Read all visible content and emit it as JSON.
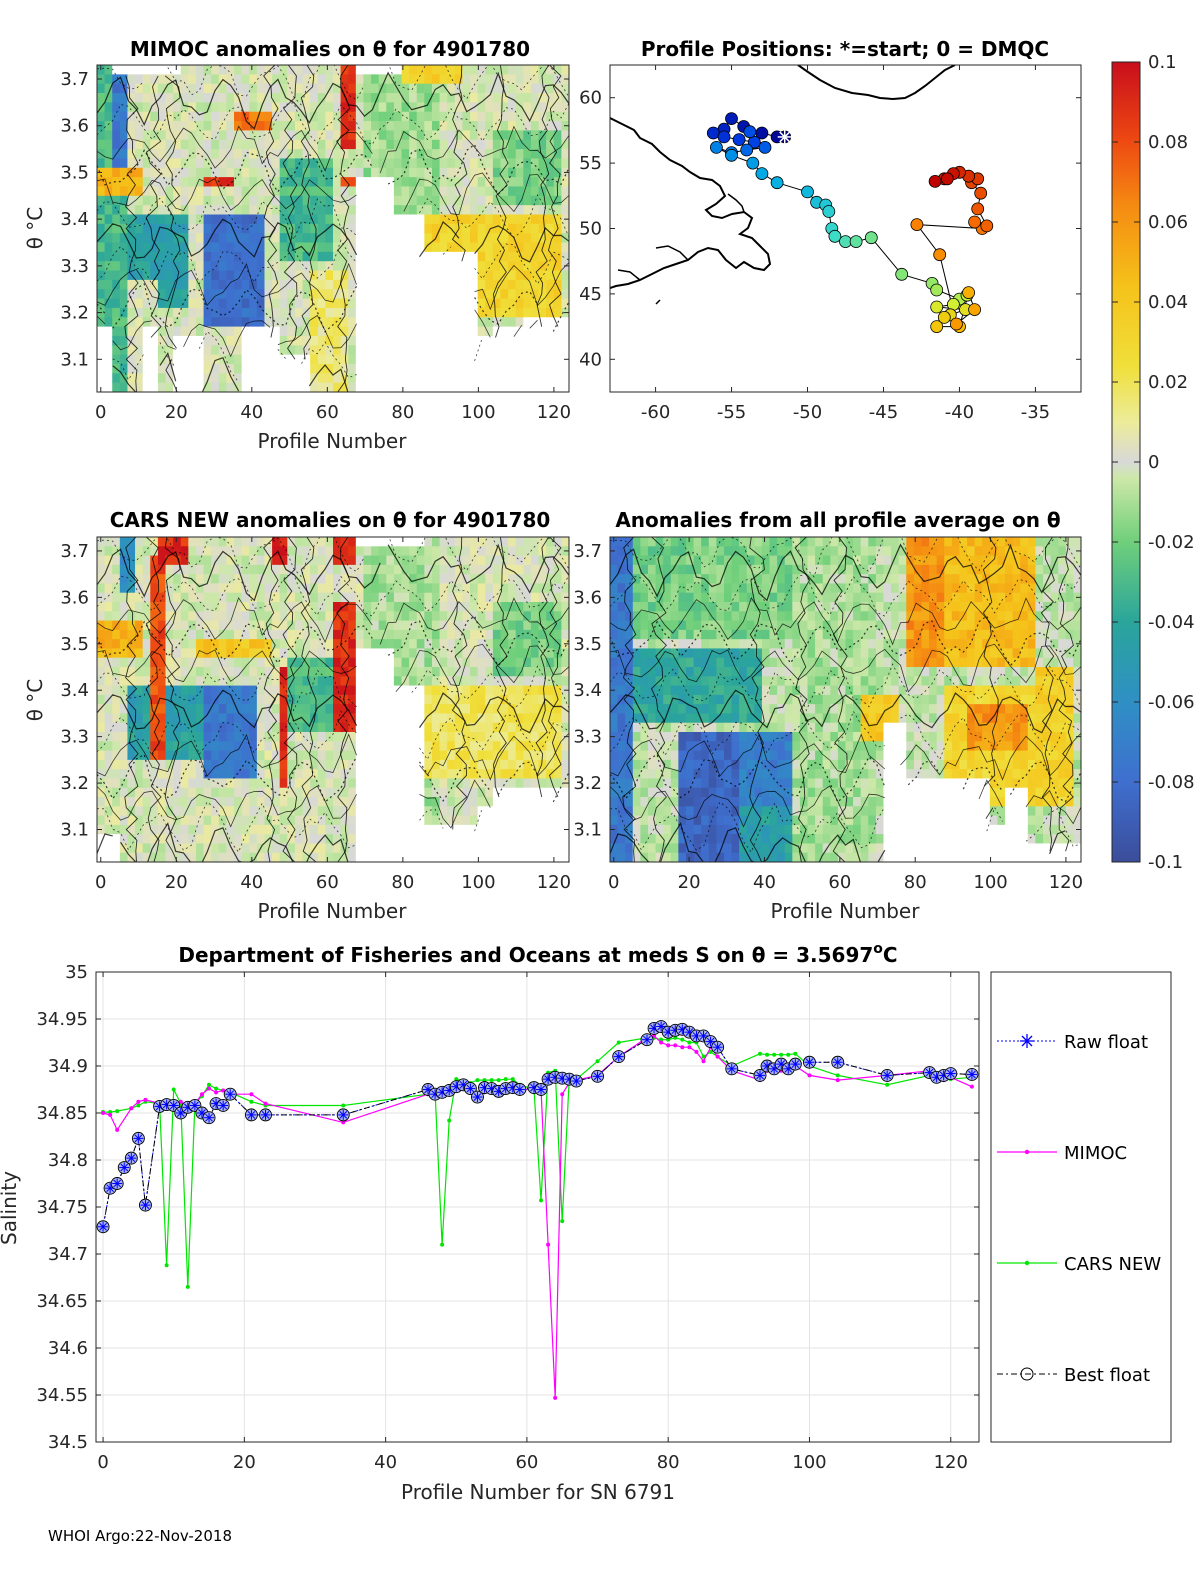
{
  "colors": {
    "raw_float": "#0000ff",
    "mimoc": "#ff00ff",
    "cars_new": "#00e600",
    "best_float": "#000000",
    "missing": "#ffffff",
    "neutral": "#d6d6d6"
  },
  "chart_data": [
    {
      "id": "mimoc",
      "type": "heatmap",
      "title": "MIMOC anomalies on θ  for 4901780",
      "xlabel": "Profile Number",
      "ylabel": "θ °C",
      "xlim": [
        -1,
        124
      ],
      "ylim": [
        3.03,
        3.73
      ],
      "x_ticks": [
        0,
        20,
        40,
        60,
        80,
        100,
        120
      ],
      "x_tick_labels": [
        "0",
        "20",
        "40",
        "60",
        "80",
        "100",
        "120"
      ],
      "y_ticks": [
        3.1,
        3.2,
        3.3,
        3.4,
        3.5,
        3.6,
        3.7
      ],
      "y_tick_labels": [
        "3.1",
        "3.2",
        "3.3",
        "3.4",
        "3.5",
        "3.6",
        "3.7"
      ]
    },
    {
      "id": "positions",
      "type": "scatter",
      "title": "Profile Positions: *=start; 0 = DMQC",
      "xlim": [
        -63,
        -32
      ],
      "ylim": [
        37.5,
        62.5
      ],
      "x_ticks": [
        -60,
        -55,
        -50,
        -45,
        -40,
        -35
      ],
      "x_tick_labels": [
        "-60",
        "-55",
        "-50",
        "-45",
        "-40",
        "-35"
      ],
      "y_ticks": [
        40,
        45,
        50,
        55,
        60
      ],
      "y_tick_labels": [
        "40",
        "45",
        "50",
        "55",
        "60"
      ],
      "track": [
        [
          -51.5,
          57.0
        ],
        [
          -52.0,
          57.0
        ],
        [
          -53.0,
          57.3
        ],
        [
          -54.2,
          57.8
        ],
        [
          -55.0,
          58.4
        ],
        [
          -55.5,
          57.6
        ],
        [
          -56.2,
          57.3
        ],
        [
          -55.5,
          57.0
        ],
        [
          -54.5,
          56.8
        ],
        [
          -53.5,
          56.6
        ],
        [
          -53.8,
          57.4
        ],
        [
          -52.8,
          56.2
        ],
        [
          -54.0,
          56.0
        ],
        [
          -55.0,
          55.8
        ],
        [
          -56.0,
          56.2
        ],
        [
          -55.0,
          55.6
        ],
        [
          -53.6,
          55.0
        ],
        [
          -53.0,
          54.2
        ],
        [
          -52.0,
          53.5
        ],
        [
          -50.0,
          52.8
        ],
        [
          -49.4,
          52.0
        ],
        [
          -48.8,
          51.8
        ],
        [
          -48.6,
          51.3
        ],
        [
          -48.4,
          50.0
        ],
        [
          -48.2,
          49.4
        ],
        [
          -47.5,
          49.0
        ],
        [
          -46.8,
          49.0
        ],
        [
          -45.8,
          49.3
        ],
        [
          -43.8,
          46.5
        ],
        [
          -41.8,
          45.8
        ],
        [
          -41.5,
          45.3
        ],
        [
          -40.0,
          44.6
        ],
        [
          -39.5,
          44.9
        ],
        [
          -40.4,
          44.2
        ],
        [
          -41.5,
          44.0
        ],
        [
          -39.6,
          43.8
        ],
        [
          -40.6,
          43.4
        ],
        [
          -41.0,
          43.2
        ],
        [
          -41.5,
          42.5
        ],
        [
          -40.0,
          42.5
        ],
        [
          -39.4,
          45.1
        ],
        [
          -39.0,
          43.8
        ],
        [
          -40.2,
          42.7
        ],
        [
          -41.3,
          48.0
        ],
        [
          -42.8,
          50.3
        ],
        [
          -38.5,
          50.0
        ],
        [
          -39.0,
          50.5
        ],
        [
          -38.2,
          50.2
        ],
        [
          -38.8,
          51.5
        ],
        [
          -38.6,
          52.7
        ],
        [
          -39.2,
          53.5
        ],
        [
          -38.8,
          53.8
        ],
        [
          -39.4,
          54.0
        ],
        [
          -40.0,
          54.3
        ],
        [
          -41.0,
          53.8
        ],
        [
          -40.4,
          54.2
        ],
        [
          -40.8,
          53.8
        ],
        [
          -41.6,
          53.6
        ]
      ]
    },
    {
      "id": "cars",
      "type": "heatmap",
      "title": "CARS NEW anomalies on θ for 4901780",
      "xlabel": "Profile Number",
      "ylabel": "θ °C",
      "xlim": [
        -1,
        124
      ],
      "ylim": [
        3.03,
        3.73
      ],
      "x_ticks": [
        0,
        20,
        40,
        60,
        80,
        100,
        120
      ],
      "x_tick_labels": [
        "0",
        "20",
        "40",
        "60",
        "80",
        "100",
        "120"
      ],
      "y_ticks": [
        3.1,
        3.2,
        3.3,
        3.4,
        3.5,
        3.6,
        3.7
      ],
      "y_tick_labels": [
        "3.1",
        "3.2",
        "3.3",
        "3.4",
        "3.5",
        "3.6",
        "3.7"
      ]
    },
    {
      "id": "allavg",
      "type": "heatmap",
      "title": "Anomalies from all profile average on θ",
      "xlabel": "Profile Number",
      "xlim": [
        -1,
        124
      ],
      "ylim": [
        3.03,
        3.73
      ],
      "x_ticks": [
        0,
        20,
        40,
        60,
        80,
        100,
        120
      ],
      "x_tick_labels": [
        "0",
        "20",
        "40",
        "60",
        "80",
        "100",
        "120"
      ],
      "y_ticks": [
        3.1,
        3.2,
        3.3,
        3.4,
        3.5,
        3.6,
        3.7
      ],
      "y_tick_labels": [
        "3.1",
        "3.2",
        "3.3",
        "3.4",
        "3.5",
        "3.6",
        "3.7"
      ]
    },
    {
      "id": "colorbar",
      "type": "colorbar",
      "range": [
        -0.1,
        0.1
      ],
      "ticks": [
        0.1,
        0.08,
        0.06,
        0.04,
        0.02,
        0,
        -0.02,
        -0.04,
        -0.06,
        -0.08,
        -0.1
      ],
      "tick_labels": [
        "0.1",
        "0.08",
        "0.06",
        "0.04",
        "0.02",
        "0",
        "-0.02",
        "-0.04",
        "-0.06",
        "-0.08",
        "-0.1"
      ]
    },
    {
      "id": "salinity",
      "type": "line",
      "title": "Department of Fisheries and Oceans at meds S on θ = 3.5697",
      "title_superscript": "o",
      "title_unit": "C",
      "xlabel": "Profile Number for SN 6791",
      "ylabel": "Salinity",
      "xlim": [
        -1,
        124
      ],
      "ylim": [
        34.5,
        35.0
      ],
      "grid": true,
      "x_ticks": [
        0,
        20,
        40,
        60,
        80,
        100,
        120
      ],
      "x_tick_labels": [
        "0",
        "20",
        "40",
        "60",
        "80",
        "100",
        "120"
      ],
      "y_ticks": [
        34.5,
        34.55,
        34.6,
        34.65,
        34.7,
        34.75,
        34.8,
        34.85,
        34.9,
        34.95,
        35.0
      ],
      "y_tick_labels": [
        "34.5",
        "34.55",
        "34.6",
        "34.65",
        "34.7",
        "34.75",
        "34.8",
        "34.85",
        "34.9",
        "34.95",
        "35"
      ],
      "legend": [
        "Raw float",
        "MIMOC",
        "CARS NEW",
        "Best float"
      ],
      "series": [
        {
          "name": "Best float",
          "x": [
            0,
            1,
            2,
            3,
            4,
            5,
            6,
            8,
            9,
            10,
            11,
            12,
            13,
            14,
            15,
            16,
            17,
            18,
            21,
            23,
            34,
            46,
            47,
            48,
            49,
            50,
            51,
            52,
            53,
            54,
            55,
            56,
            57,
            58,
            59,
            61,
            62,
            63,
            64,
            65,
            66,
            67,
            70,
            73,
            77,
            78,
            79,
            80,
            81,
            82,
            83,
            84,
            85,
            86,
            87,
            89,
            93,
            94,
            95,
            96,
            97,
            98,
            100,
            104,
            111,
            117,
            118,
            119,
            120,
            123
          ],
          "y": [
            34.729,
            34.77,
            34.775,
            34.792,
            34.802,
            34.823,
            34.752,
            34.857,
            34.859,
            34.858,
            34.85,
            34.856,
            34.858,
            34.85,
            34.845,
            34.86,
            34.858,
            34.87,
            34.848,
            34.848,
            34.848,
            34.875,
            34.87,
            34.872,
            34.874,
            34.878,
            34.88,
            34.876,
            34.867,
            34.877,
            34.876,
            34.873,
            34.876,
            34.877,
            34.875,
            34.877,
            34.875,
            34.886,
            34.888,
            34.887,
            34.886,
            34.884,
            34.889,
            34.91,
            34.928,
            34.94,
            34.942,
            34.936,
            34.938,
            34.939,
            34.936,
            34.932,
            34.932,
            34.926,
            34.92,
            34.897,
            34.89,
            34.9,
            34.897,
            34.902,
            34.897,
            34.902,
            34.904,
            34.904,
            34.89,
            34.893,
            34.888,
            34.89,
            34.892,
            34.891
          ]
        },
        {
          "name": "Raw float",
          "x": [
            0,
            1,
            2,
            3,
            4,
            5,
            6,
            8,
            9,
            10,
            11,
            12,
            13,
            14,
            15,
            16,
            17,
            18,
            21,
            23,
            34,
            46,
            47,
            48,
            49,
            50,
            51,
            52,
            53,
            54,
            55,
            56,
            57,
            58,
            59,
            61,
            62,
            63,
            64,
            65,
            66,
            67,
            70,
            73,
            77,
            78,
            79,
            80,
            81,
            82,
            83,
            84,
            85,
            86,
            87,
            89,
            93,
            94,
            95,
            96,
            97,
            98,
            100,
            104,
            111,
            117,
            118,
            119,
            120,
            123
          ],
          "y": [
            34.729,
            34.77,
            34.775,
            34.792,
            34.802,
            34.823,
            34.752,
            34.857,
            34.859,
            34.858,
            34.85,
            34.856,
            34.858,
            34.85,
            34.845,
            34.86,
            34.858,
            34.87,
            34.848,
            34.848,
            34.848,
            34.875,
            34.87,
            34.872,
            34.874,
            34.878,
            34.88,
            34.876,
            34.867,
            34.877,
            34.876,
            34.873,
            34.876,
            34.877,
            34.875,
            34.877,
            34.875,
            34.886,
            34.888,
            34.887,
            34.886,
            34.884,
            34.889,
            34.91,
            34.928,
            34.94,
            34.942,
            34.936,
            34.938,
            34.939,
            34.936,
            34.932,
            34.932,
            34.926,
            34.92,
            34.897,
            34.89,
            34.9,
            34.897,
            34.902,
            34.897,
            34.902,
            34.904,
            34.904,
            34.89,
            34.893,
            34.888,
            34.89,
            34.892,
            34.891
          ]
        },
        {
          "name": "MIMOC",
          "x": [
            0,
            1,
            2,
            4,
            5,
            6,
            8,
            9,
            10,
            11,
            12,
            13,
            14,
            15,
            16,
            17,
            18,
            21,
            23,
            34,
            46,
            47,
            48,
            49,
            50,
            51,
            52,
            53,
            54,
            55,
            56,
            57,
            58,
            59,
            61,
            62,
            63,
            64,
            65,
            66,
            67,
            70,
            73,
            77,
            78,
            79,
            80,
            81,
            82,
            83,
            84,
            85,
            86,
            87,
            89,
            93,
            94,
            95,
            96,
            97,
            98,
            100,
            104,
            111,
            117,
            118,
            119,
            120,
            123
          ],
          "y": [
            34.85,
            34.848,
            34.832,
            34.855,
            34.862,
            34.864,
            34.86,
            34.857,
            34.86,
            34.862,
            34.857,
            34.86,
            34.87,
            34.876,
            34.872,
            34.874,
            34.87,
            34.87,
            34.86,
            34.84,
            34.87,
            34.872,
            34.868,
            34.87,
            34.875,
            34.878,
            34.875,
            34.87,
            34.872,
            34.874,
            34.876,
            34.877,
            34.876,
            34.874,
            34.876,
            34.876,
            34.71,
            34.547,
            34.87,
            34.882,
            34.885,
            34.89,
            34.91,
            34.93,
            34.932,
            34.925,
            34.922,
            34.922,
            34.92,
            34.92,
            34.915,
            34.905,
            34.92,
            34.91,
            34.895,
            34.885,
            34.895,
            34.895,
            34.895,
            34.895,
            34.9,
            34.89,
            34.885,
            34.89,
            34.895,
            34.89,
            34.885,
            34.888,
            34.878
          ]
        },
        {
          "name": "CARS NEW",
          "x": [
            0,
            1,
            2,
            4,
            5,
            6,
            8,
            9,
            10,
            11,
            12,
            13,
            14,
            15,
            16,
            17,
            18,
            21,
            23,
            34,
            46,
            47,
            48,
            49,
            50,
            51,
            52,
            53,
            54,
            55,
            56,
            57,
            58,
            59,
            61,
            62,
            63,
            64,
            65,
            66,
            67,
            70,
            73,
            77,
            78,
            79,
            80,
            81,
            82,
            83,
            84,
            85,
            86,
            87,
            89,
            93,
            94,
            95,
            96,
            97,
            98,
            100,
            104,
            111,
            117,
            118,
            119,
            120,
            123
          ],
          "y": [
            34.851,
            34.851,
            34.852,
            34.855,
            34.858,
            34.862,
            34.86,
            34.688,
            34.875,
            34.86,
            34.665,
            34.86,
            34.868,
            34.88,
            34.876,
            34.874,
            34.872,
            34.862,
            34.858,
            34.858,
            34.87,
            34.872,
            34.71,
            34.842,
            34.886,
            34.884,
            34.882,
            34.885,
            34.885,
            34.885,
            34.885,
            34.886,
            34.886,
            34.88,
            34.875,
            34.757,
            34.893,
            34.895,
            34.735,
            34.888,
            34.886,
            34.905,
            34.925,
            34.93,
            34.93,
            34.928,
            34.928,
            34.93,
            34.928,
            34.925,
            34.925,
            34.91,
            34.915,
            34.91,
            34.9,
            34.913,
            34.912,
            34.912,
            34.912,
            34.912,
            34.913,
            34.9,
            34.89,
            34.88,
            34.89,
            34.885,
            34.885,
            34.886,
            34.888
          ]
        }
      ]
    }
  ],
  "footer": "WHOI Argo:22-Nov-2018"
}
